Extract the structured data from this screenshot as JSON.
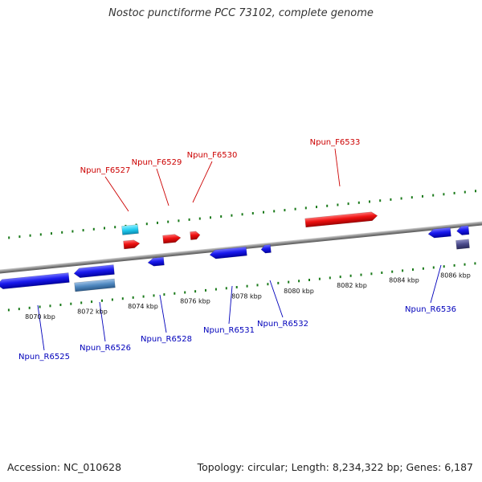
{
  "title": "Nostoc punctiforme PCC 73102, complete genome",
  "footer": {
    "accession": "Accession: NC_010628",
    "summary": "Topology: circular; Length: 8,234,322 bp; Genes: 6,187"
  },
  "colors": {
    "forward_gene": "#e81010",
    "reverse_gene": "#1a1af0",
    "forward_label": "#cc0000",
    "reverse_label": "#0000bb",
    "tick": "#1a7a1a",
    "backbone": "#8a8a8a",
    "light_blue_feature": "#22ccf0",
    "steel_blue_feature": "#4f88c0",
    "slate_feature": "#4a4a8a"
  },
  "tick_labels": [
    "8070 kbp",
    "8072 kbp",
    "8074 kbp",
    "8076 kbp",
    "8078 kbp",
    "8080 kbp",
    "8082 kbp",
    "8084 kbp",
    "8086 kbp"
  ],
  "forward_genes": [
    {
      "name": "Npun_F6527"
    },
    {
      "name": "Npun_F6529"
    },
    {
      "name": "Npun_F6530"
    },
    {
      "name": "Npun_F6533"
    }
  ],
  "reverse_genes": [
    {
      "name": "Npun_R6525"
    },
    {
      "name": "Npun_R6526"
    },
    {
      "name": "Npun_R6528"
    },
    {
      "name": "Npun_R6531"
    },
    {
      "name": "Npun_R6532"
    },
    {
      "name": "Npun_R6536"
    }
  ]
}
